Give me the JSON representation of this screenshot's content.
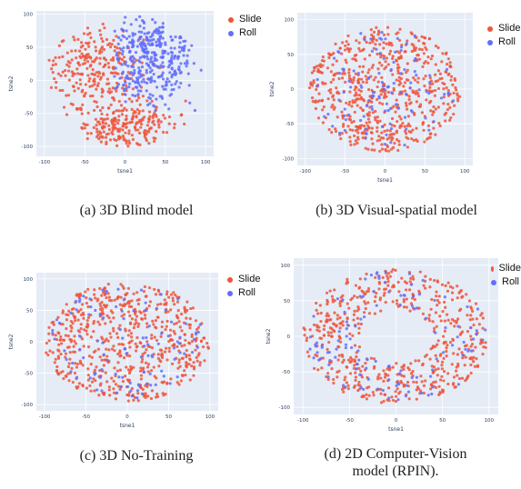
{
  "chart_data": [
    {
      "type": "scatter",
      "caption": "(a) 3D Blind model",
      "xlabel": "tsne1",
      "ylabel": "tsne2",
      "xlim": [
        -110,
        110
      ],
      "ylim": [
        -115,
        105
      ],
      "xticks": [
        -100,
        -50,
        0,
        50,
        100
      ],
      "yticks": [
        -100,
        -50,
        0,
        50,
        100
      ],
      "legend_position": "top-right",
      "series": [
        {
          "name": "Slide",
          "color": "#ef553b",
          "distribution": {
            "type": "left-blob",
            "centers": [
              [
                -40,
                20
              ],
              [
                10,
                -70
              ]
            ],
            "spread": 0.9
          }
        },
        {
          "name": "Roll",
          "color": "#636efa",
          "distribution": {
            "type": "right-blob",
            "centers": [
              [
                35,
                35
              ]
            ],
            "spread": 0.85
          }
        }
      ]
    },
    {
      "type": "scatter",
      "caption": "(b) 3D Visual-spatial model",
      "xlabel": "tsne1",
      "ylabel": "tsne2",
      "xlim": [
        -110,
        110
      ],
      "ylim": [
        -110,
        110
      ],
      "xticks": [
        -100,
        -50,
        0,
        50,
        100
      ],
      "yticks": [
        -100,
        -50,
        0,
        50,
        100
      ],
      "legend_position": "top-right",
      "series": [
        {
          "name": "Slide",
          "color": "#ef553b",
          "distribution": {
            "type": "ellipse",
            "rx": 95,
            "ry": 95
          }
        },
        {
          "name": "Roll",
          "color": "#636efa",
          "distribution": {
            "type": "ellipse-sparse",
            "rx": 90,
            "ry": 90
          }
        }
      ]
    },
    {
      "type": "scatter",
      "caption": "(c) 3D No-Training",
      "xlabel": "tsne1",
      "ylabel": "tsne2",
      "xlim": [
        -110,
        110
      ],
      "ylim": [
        -110,
        110
      ],
      "xticks": [
        -100,
        -50,
        0,
        50,
        100
      ],
      "yticks": [
        -100,
        -50,
        0,
        50,
        100
      ],
      "legend_position": "top-right",
      "series": [
        {
          "name": "Slide",
          "color": "#ef553b",
          "distribution": {
            "type": "ellipse",
            "rx": 100,
            "ry": 100
          }
        },
        {
          "name": "Roll",
          "color": "#636efa",
          "distribution": {
            "type": "ellipse-sparse",
            "rx": 95,
            "ry": 95
          }
        }
      ]
    },
    {
      "type": "scatter",
      "caption": "(d) 2D Computer-Vision model (RPIN).",
      "xlabel": "tsne1",
      "ylabel": "tsne2",
      "xlim": [
        -110,
        110
      ],
      "ylim": [
        -110,
        110
      ],
      "xticks": [
        -100,
        -50,
        0,
        50,
        100
      ],
      "yticks": [
        -100,
        -50,
        0,
        50,
        100
      ],
      "legend_position": "top-right",
      "series": [
        {
          "name": "Slide",
          "color": "#ef553b",
          "distribution": {
            "type": "ring",
            "rInner": 40,
            "rOuter": 100
          }
        },
        {
          "name": "Roll",
          "color": "#636efa",
          "distribution": {
            "type": "ring-sparse",
            "rInner": 40,
            "rOuter": 98
          }
        }
      ]
    }
  ]
}
